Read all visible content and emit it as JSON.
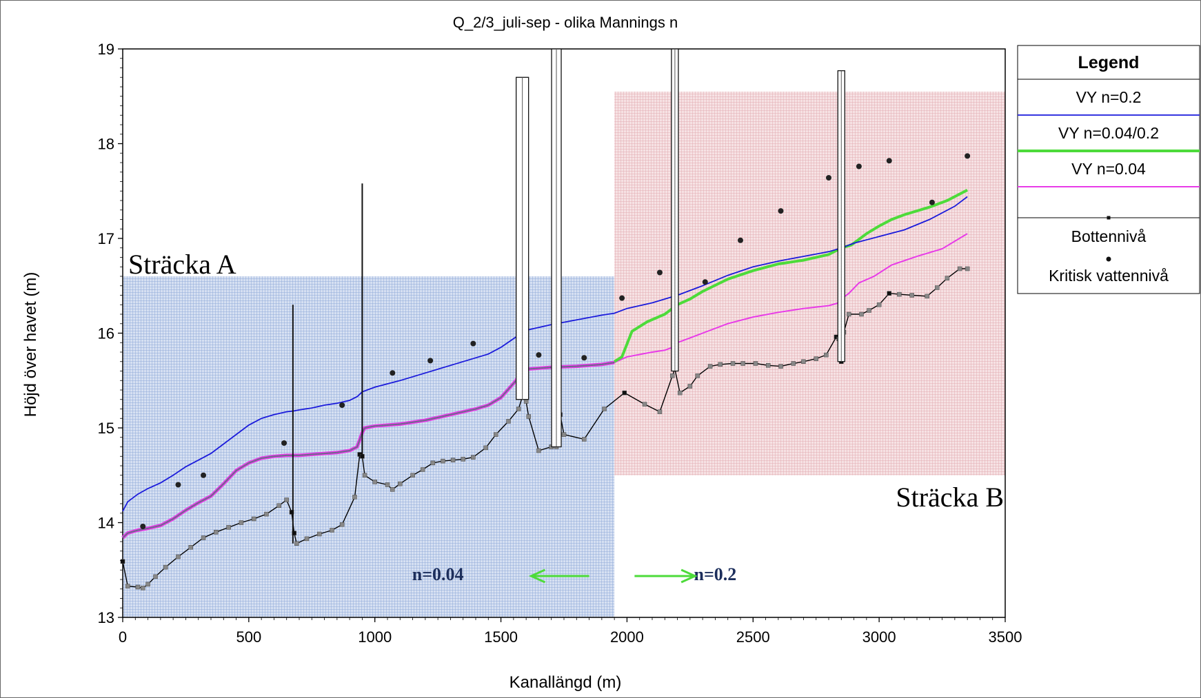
{
  "chart_data": {
    "type": "line",
    "title": "Q_2/3_juli-sep - olika Mannings n",
    "xlabel": "Kanallängd (m)",
    "ylabel": "Höjd över havet (m)",
    "xlim": [
      0,
      3500
    ],
    "ylim": [
      13,
      19
    ],
    "x_ticks": [
      "0",
      "500",
      "1000",
      "1500",
      "2000",
      "2500",
      "3000",
      "3500"
    ],
    "y_ticks": [
      "13",
      "14",
      "15",
      "16",
      "17",
      "18",
      "19"
    ],
    "grid": false,
    "legend_position": "right",
    "legend_title": "Legend",
    "colors": {
      "vy_n02": "#1a1adb",
      "vy_n004_02": "#4ddb3a",
      "vy_n004": "#e83ae8",
      "vy_n004_overlay": "#6b6b8a",
      "bottom": "#000000",
      "bottom_marker": "#888888",
      "critical": "#222222",
      "region_a": "#a9c0e6",
      "region_b": "#e8b8bd",
      "n_label": "#1c2e5c"
    },
    "regions": [
      {
        "name": "Sträcka A",
        "x": [
          0,
          1950
        ],
        "y": [
          13,
          16.6
        ]
      },
      {
        "name": "Sträcka B",
        "x": [
          1950,
          3500
        ],
        "y": [
          14.5,
          18.55
        ]
      }
    ],
    "annotations": [
      {
        "text": "n=0.04",
        "x": 1250,
        "y": 13.5,
        "arrow_from": 1850,
        "arrow_to": 1620
      },
      {
        "text": "n=0.2",
        "x": 2350,
        "y": 13.5,
        "arrow_from": 2030,
        "arrow_to": 2270
      }
    ],
    "series": [
      {
        "name": "VY n=0.2",
        "type": "line",
        "x": [
          0,
          20,
          60,
          100,
          150,
          200,
          250,
          300,
          350,
          400,
          450,
          500,
          550,
          600,
          650,
          680,
          700,
          750,
          800,
          850,
          900,
          930,
          950,
          1000,
          1100,
          1200,
          1300,
          1400,
          1450,
          1500,
          1560,
          1580,
          1600,
          1700,
          1800,
          1900,
          1950,
          2000,
          2100,
          2200,
          2300,
          2400,
          2500,
          2600,
          2700,
          2800,
          2850,
          2900,
          3000,
          3100,
          3200,
          3300,
          3350
        ],
        "y": [
          14.12,
          14.22,
          14.3,
          14.36,
          14.42,
          14.5,
          14.59,
          14.66,
          14.73,
          14.83,
          14.93,
          15.03,
          15.1,
          15.14,
          15.17,
          15.18,
          15.19,
          15.21,
          15.24,
          15.26,
          15.29,
          15.33,
          15.38,
          15.43,
          15.5,
          15.58,
          15.66,
          15.74,
          15.78,
          15.85,
          15.96,
          16.01,
          16.03,
          16.09,
          16.14,
          16.19,
          16.21,
          16.26,
          16.32,
          16.4,
          16.5,
          16.61,
          16.7,
          16.76,
          16.81,
          16.86,
          16.9,
          16.95,
          17.02,
          17.09,
          17.2,
          17.34,
          17.44
        ]
      },
      {
        "name": "VY n=0.04/0.2",
        "type": "line",
        "x": [
          1950,
          1980,
          2020,
          2080,
          2150,
          2180,
          2200,
          2250,
          2300,
          2400,
          2500,
          2600,
          2700,
          2800,
          2850,
          2890,
          2950,
          3000,
          3050,
          3100,
          3200,
          3270,
          3350
        ],
        "y": [
          15.7,
          15.75,
          16.02,
          16.12,
          16.2,
          16.26,
          16.3,
          16.36,
          16.44,
          16.57,
          16.66,
          16.73,
          16.77,
          16.83,
          16.9,
          16.93,
          17.05,
          17.13,
          17.2,
          17.25,
          17.33,
          17.4,
          17.51
        ]
      },
      {
        "name": "VY n=0.04",
        "type": "line",
        "x": [
          0,
          20,
          60,
          100,
          150,
          200,
          250,
          300,
          350,
          400,
          450,
          500,
          550,
          600,
          650,
          680,
          700,
          750,
          800,
          850,
          900,
          930,
          950,
          960,
          1000,
          1100,
          1200,
          1300,
          1400,
          1450,
          1500,
          1560,
          1580,
          1600,
          1700,
          1800,
          1900,
          1950,
          2000,
          2100,
          2150,
          2180,
          2200,
          2250,
          2300,
          2400,
          2500,
          2600,
          2700,
          2800,
          2840,
          2850,
          2880,
          2920,
          2980,
          3050,
          3150,
          3250,
          3350
        ],
        "y": [
          13.84,
          13.89,
          13.92,
          13.94,
          13.97,
          14.04,
          14.13,
          14.21,
          14.28,
          14.41,
          14.55,
          14.63,
          14.68,
          14.7,
          14.71,
          14.71,
          14.71,
          14.72,
          14.73,
          14.74,
          14.76,
          14.8,
          14.95,
          15.0,
          15.02,
          15.04,
          15.08,
          15.14,
          15.2,
          15.24,
          15.32,
          15.5,
          15.6,
          15.62,
          15.64,
          15.65,
          15.67,
          15.69,
          15.75,
          15.8,
          15.82,
          15.85,
          15.9,
          15.95,
          16.0,
          16.1,
          16.17,
          16.22,
          16.26,
          16.29,
          16.32,
          16.36,
          16.42,
          16.53,
          16.6,
          16.72,
          16.81,
          16.89,
          17.05
        ]
      },
      {
        "name": "Bottennivå",
        "type": "line-markers",
        "x": [
          0,
          20,
          60,
          80,
          100,
          130,
          170,
          220,
          270,
          320,
          370,
          420,
          470,
          520,
          570,
          620,
          650,
          670,
          680,
          690,
          730,
          780,
          830,
          870,
          920,
          940,
          950,
          960,
          1000,
          1050,
          1070,
          1100,
          1150,
          1190,
          1230,
          1270,
          1310,
          1350,
          1390,
          1440,
          1480,
          1530,
          1570,
          1585,
          1590,
          1600,
          1610,
          1650,
          1700,
          1720,
          1735,
          1750,
          1830,
          1910,
          1990,
          2070,
          2130,
          2180,
          2190,
          2210,
          2250,
          2280,
          2330,
          2370,
          2420,
          2460,
          2510,
          2560,
          2610,
          2660,
          2700,
          2750,
          2790,
          2830,
          2840,
          2850,
          2860,
          2880,
          2930,
          2960,
          3000,
          3040,
          3080,
          3130,
          3190,
          3230,
          3270,
          3320,
          3350
        ],
        "y": [
          13.59,
          13.33,
          13.32,
          13.31,
          13.35,
          13.43,
          13.53,
          13.64,
          13.74,
          13.84,
          13.9,
          13.95,
          14.0,
          14.04,
          14.09,
          14.18,
          14.24,
          14.11,
          13.89,
          13.78,
          13.83,
          13.88,
          13.92,
          13.98,
          14.27,
          14.72,
          14.7,
          14.5,
          14.43,
          14.4,
          14.35,
          14.41,
          14.5,
          14.56,
          14.63,
          14.65,
          14.66,
          14.67,
          14.69,
          14.79,
          14.93,
          15.07,
          15.2,
          15.33,
          15.35,
          15.28,
          15.12,
          14.76,
          14.8,
          14.8,
          15.14,
          14.93,
          14.88,
          15.2,
          15.37,
          15.25,
          15.17,
          15.55,
          15.62,
          15.37,
          15.44,
          15.55,
          15.65,
          15.67,
          15.68,
          15.68,
          15.68,
          15.66,
          15.65,
          15.68,
          15.7,
          15.73,
          15.77,
          15.96,
          15.94,
          15.7,
          16.01,
          16.2,
          16.2,
          16.24,
          16.3,
          16.42,
          16.41,
          16.4,
          16.39,
          16.48,
          16.58,
          16.68,
          16.68
        ]
      },
      {
        "name": "Kritisk vattennivå",
        "type": "scatter",
        "x": [
          80,
          220,
          320,
          640,
          870,
          1070,
          1220,
          1390,
          1650,
          1830,
          1980,
          2130,
          2310,
          2450,
          2610,
          2800,
          2920,
          3040,
          3210,
          3350
        ],
        "y": [
          13.96,
          14.4,
          14.5,
          14.84,
          15.24,
          15.58,
          15.71,
          15.89,
          15.77,
          15.74,
          16.37,
          16.64,
          16.54,
          16.98,
          17.29,
          17.64,
          17.76,
          17.82,
          17.38,
          17.87
        ]
      }
    ],
    "structures": [
      {
        "x": 675,
        "y": [
          13.78,
          16.3
        ],
        "type": "line"
      },
      {
        "x": 950,
        "y": [
          14.72,
          17.58
        ],
        "type": "line"
      },
      {
        "x": 1585,
        "y": [
          15.3,
          18.7
        ],
        "type": "box",
        "width": 18
      },
      {
        "x": 1720,
        "y": [
          14.8,
          19.0
        ],
        "type": "box",
        "width": 14
      },
      {
        "x": 2190,
        "y": [
          15.6,
          19.0
        ],
        "type": "box",
        "width": 10
      },
      {
        "x": 2850,
        "y": [
          15.7,
          18.77
        ],
        "type": "box",
        "width": 10
      }
    ],
    "legend": [
      "VY n=0.2",
      "VY n=0.04/0.2",
      "VY n=0.04",
      "Bottennivå",
      "Kritisk vattennivå"
    ]
  }
}
